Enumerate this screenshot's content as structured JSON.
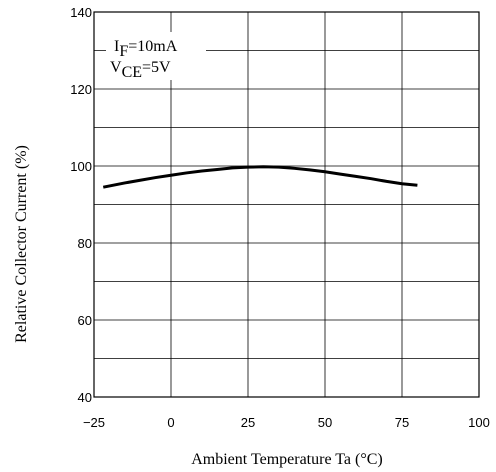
{
  "chart_data": {
    "type": "line",
    "xlabel": "Ambient Temperature Ta (°C)",
    "ylabel": "Relative Collector Current (%)",
    "xlim": [
      -25,
      100
    ],
    "ylim": [
      40,
      140
    ],
    "x_ticks": [
      "−25",
      "0",
      "25",
      "50",
      "75",
      "100"
    ],
    "y_ticks": [
      "40",
      "60",
      "80",
      "100",
      "120",
      "140"
    ],
    "grid": true,
    "annotation": {
      "line1_main": "I",
      "line1_sub": "F",
      "line1_rest": "=10mA",
      "line2_main": "V",
      "line2_sub": "CE",
      "line2_rest": "=5V"
    },
    "series": [
      {
        "x": [
          -22,
          -15,
          -10,
          -5,
          0,
          5,
          10,
          15,
          20,
          25,
          30,
          35,
          40,
          45,
          50,
          55,
          60,
          65,
          70,
          75,
          80
        ],
        "y": [
          94.5,
          95.6,
          96.3,
          97.0,
          97.6,
          98.2,
          98.7,
          99.1,
          99.5,
          99.7,
          99.8,
          99.7,
          99.4,
          99.0,
          98.5,
          97.9,
          97.3,
          96.7,
          96.0,
          95.4,
          95.0
        ]
      }
    ]
  }
}
